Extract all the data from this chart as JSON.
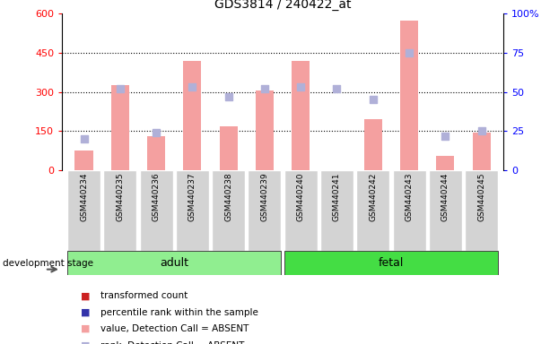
{
  "title": "GDS3814 / 240422_at",
  "samples": [
    "GSM440234",
    "GSM440235",
    "GSM440236",
    "GSM440237",
    "GSM440238",
    "GSM440239",
    "GSM440240",
    "GSM440241",
    "GSM440242",
    "GSM440243",
    "GSM440244",
    "GSM440245"
  ],
  "transformed_count": [
    75,
    325,
    130,
    420,
    170,
    305,
    420,
    0,
    195,
    575,
    55,
    145
  ],
  "percentile_rank": [
    20,
    52,
    24,
    53,
    47,
    52,
    53,
    52,
    45,
    75,
    22,
    25
  ],
  "detection_call": [
    "A",
    "A",
    "A",
    "A",
    "A",
    "A",
    "A",
    "A",
    "A",
    "A",
    "A",
    "A"
  ],
  "left_ylim": [
    0,
    600
  ],
  "right_ylim": [
    0,
    100
  ],
  "left_yticks": [
    0,
    150,
    300,
    450,
    600
  ],
  "right_yticks": [
    0,
    25,
    50,
    75,
    100
  ],
  "color_bar": "#f4a0a0",
  "color_dot": "#b0b0d8",
  "color_adult_bg": "#90ee90",
  "color_fetal_bg": "#44dd44",
  "color_sample_bg": "#d3d3d3",
  "legend_red": "#cc2222",
  "legend_blue": "#3333aa",
  "legend_pink": "#f4a0a0",
  "legend_lavender": "#b0b0d8"
}
